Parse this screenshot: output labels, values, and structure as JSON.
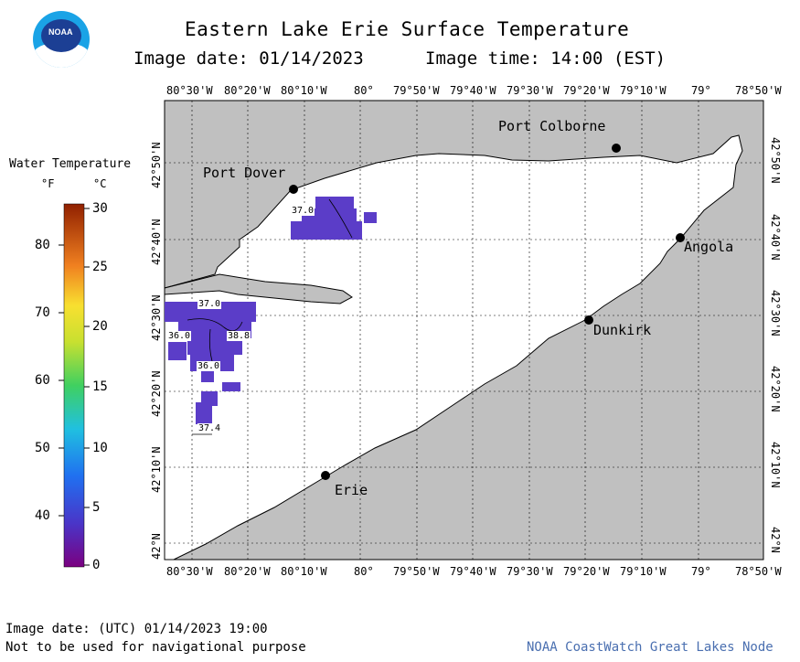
{
  "header": {
    "title": "Eastern Lake Erie Surface Temperature",
    "image_date_label": "Image date: 01/14/2023",
    "image_time_label": "Image time: 14:00 (EST)"
  },
  "logo": {
    "text": "NOAA"
  },
  "legend": {
    "title": "Water Temperature",
    "unit_f": "°F",
    "unit_c": "°C",
    "f_ticks": [
      "80",
      "70",
      "60",
      "50",
      "40"
    ],
    "c_ticks": [
      "30",
      "25",
      "20",
      "15",
      "10",
      "5",
      "0"
    ]
  },
  "axes": {
    "lon_ticks": [
      "80°30'W",
      "80°20'W",
      "80°10'W",
      "80°",
      "79°50'W",
      "79°40'W",
      "79°30'W",
      "79°20'W",
      "79°10'W",
      "79°",
      "78°50'W"
    ],
    "lat_ticks": [
      "42°50'N",
      "42°40'N",
      "42°30'N",
      "42°20'N",
      "42°10'N",
      "42°N"
    ]
  },
  "cities": [
    "Port Dover",
    "Port Colborne",
    "Angola",
    "Dunkirk",
    "Erie"
  ],
  "contour_labels": [
    "37.0",
    "37.0",
    "36.0",
    "38.8",
    "36.0",
    "37.4"
  ],
  "footer": {
    "utc_date": "Image date: (UTC) 01/14/2023  19:00",
    "disclaimer": "Not to be used for navigational purpose",
    "credit": "NOAA CoastWatch Great Lakes Node"
  },
  "colors": {
    "land": "#c0c0c0",
    "water": "#ffffff",
    "ice_cold": "#5b3dc8"
  }
}
